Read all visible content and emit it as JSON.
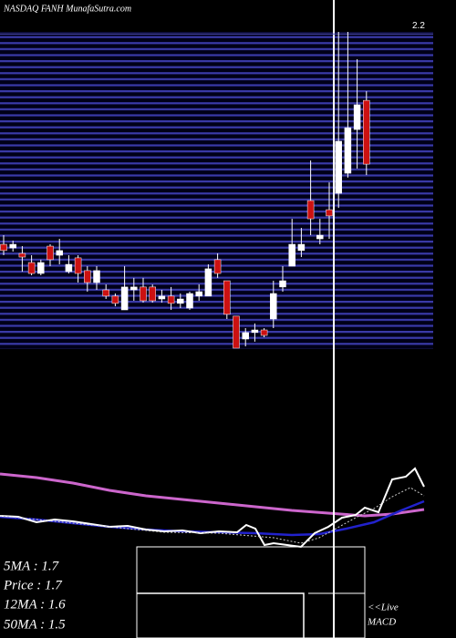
{
  "chart_data": {
    "type": "candlestick",
    "title": "NASDAQ FANH MunafaSutra.com",
    "ylim": [
      0.986,
      2.215
    ],
    "yticks": [
      2.2
    ],
    "grid": true,
    "up_color": "#ffffff",
    "down_color": "#cc1111",
    "open": [
      1.392,
      1.378,
      1.357,
      1.322,
      1.28,
      1.385,
      1.35,
      1.287,
      1.34,
      1.291,
      1.245,
      1.217,
      1.193,
      1.14,
      1.217,
      1.228,
      1.228,
      1.182,
      1.193,
      1.165,
      1.147,
      1.193,
      1.193,
      1.333,
      1.252,
      1.116,
      1.028,
      1.053,
      1.063,
      1.105,
      1.228,
      1.308,
      1.368,
      1.56,
      1.413,
      1.525,
      1.588,
      1.665,
      1.833,
      1.945
    ],
    "high": [
      1.427,
      1.406,
      1.385,
      1.35,
      1.333,
      1.392,
      1.413,
      1.35,
      1.35,
      1.308,
      1.308,
      1.238,
      1.203,
      1.308,
      1.263,
      1.263,
      1.238,
      1.217,
      1.228,
      1.203,
      1.21,
      1.238,
      1.315,
      1.357,
      1.252,
      1.116,
      1.07,
      1.088,
      1.07,
      1.252,
      1.308,
      1.49,
      1.455,
      1.714,
      1.49,
      1.63,
      2.208,
      2.208,
      2.103,
      1.98
    ],
    "low": [
      1.35,
      1.364,
      1.287,
      1.273,
      1.273,
      1.308,
      1.315,
      1.28,
      1.245,
      1.21,
      1.217,
      1.182,
      1.154,
      1.14,
      1.175,
      1.168,
      1.168,
      1.168,
      1.14,
      1.147,
      1.14,
      1.175,
      1.193,
      1.263,
      1.105,
      0.993,
      1.0,
      1.018,
      1.035,
      1.07,
      1.21,
      1.308,
      1.343,
      1.427,
      1.392,
      1.413,
      1.532,
      1.648,
      1.683,
      1.658
    ],
    "close": [
      1.368,
      1.392,
      1.343,
      1.28,
      1.322,
      1.333,
      1.368,
      1.315,
      1.28,
      1.245,
      1.291,
      1.193,
      1.165,
      1.228,
      1.228,
      1.175,
      1.175,
      1.193,
      1.165,
      1.182,
      1.203,
      1.21,
      1.298,
      1.28,
      1.123,
      0.993,
      1.053,
      1.063,
      1.042,
      1.203,
      1.252,
      1.392,
      1.392,
      1.49,
      1.427,
      1.501,
      1.788,
      1.84,
      1.928,
      1.7
    ],
    "info": [
      "5MA : 1.7",
      "Price  : 1.7",
      "12MA : 1.6",
      "50MA : 1.5"
    ],
    "live_label": "<<Live",
    "macd_label": "MACD"
  }
}
